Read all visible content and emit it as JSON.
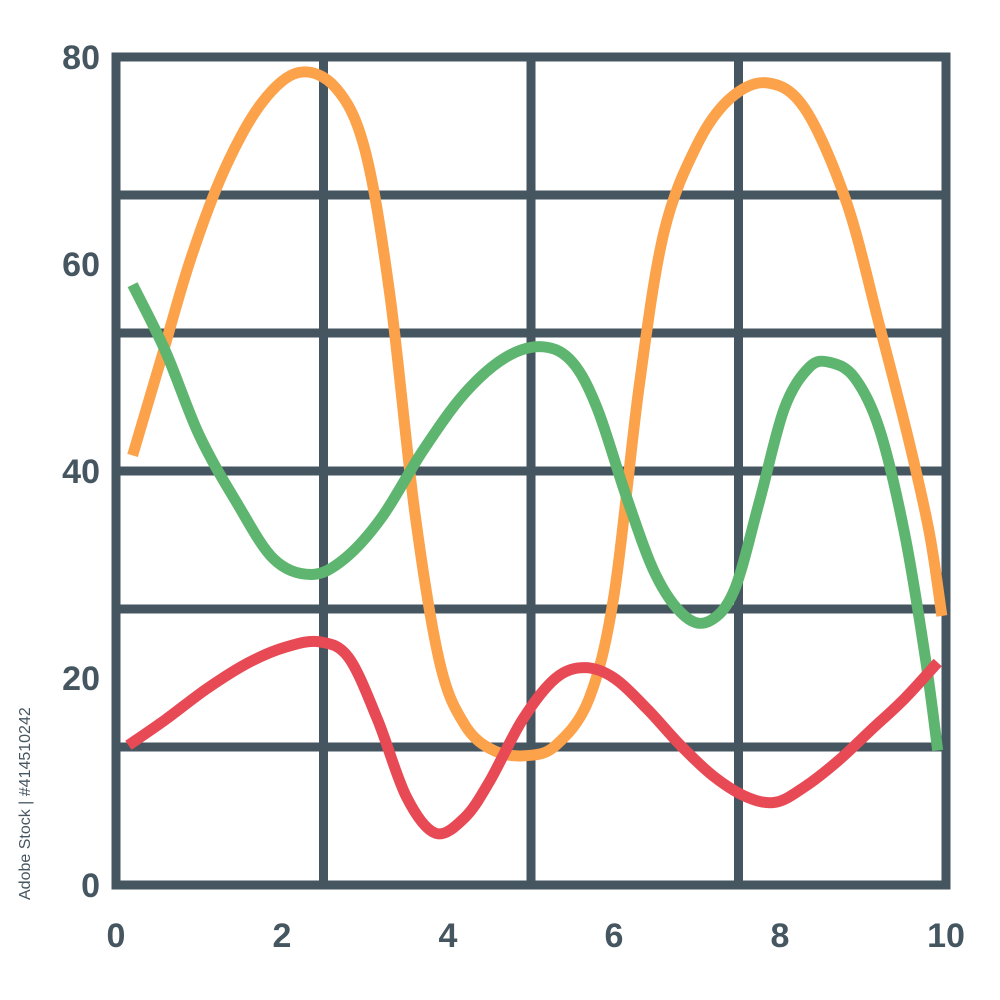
{
  "chart_data": {
    "type": "line",
    "title": "",
    "xlabel": "",
    "ylabel": "",
    "xlim": [
      0,
      10
    ],
    "ylim": [
      0,
      80
    ],
    "x_ticks": [
      "0",
      "2",
      "4",
      "6",
      "8",
      "10"
    ],
    "y_ticks": [
      "0",
      "20",
      "40",
      "60",
      "80"
    ],
    "grid": true,
    "colors": {
      "grid": "#465661",
      "orange": "#FBA24A",
      "green": "#5DB56F",
      "red": "#E84A55"
    },
    "series": [
      {
        "color": "#FBA24A",
        "x": [
          0.2,
          0.55,
          0.9,
          1.3,
          1.75,
          2.2,
          2.65,
          3.0,
          3.3,
          3.6,
          3.9,
          4.2,
          4.55,
          4.95,
          5.3,
          5.7,
          6.0,
          6.3,
          6.6,
          7.0,
          7.4,
          7.85,
          8.3,
          8.8,
          9.2,
          9.55,
          9.8,
          9.95
        ],
        "y": [
          41.5,
          51,
          60.5,
          69,
          75.5,
          78.5,
          77,
          71,
          57,
          36,
          21.5,
          15.5,
          13,
          12.5,
          13.5,
          18,
          28,
          48,
          63,
          71.5,
          76,
          77.5,
          75,
          66,
          54,
          43,
          34,
          26
        ]
      },
      {
        "color": "#5DB56F",
        "x": [
          0.2,
          0.6,
          1.0,
          1.45,
          1.9,
          2.35,
          2.75,
          3.2,
          3.7,
          4.2,
          4.7,
          5.15,
          5.5,
          5.8,
          6.15,
          6.5,
          6.85,
          7.15,
          7.45,
          7.75,
          8.05,
          8.35,
          8.6,
          8.9,
          9.2,
          9.5,
          9.75,
          9.9
        ],
        "y": [
          58,
          51.5,
          43.5,
          37,
          31.5,
          30,
          31.5,
          35.5,
          42,
          47.5,
          51,
          52,
          50.5,
          46,
          37.5,
          30,
          26,
          25.5,
          28.5,
          37,
          46,
          50,
          50.5,
          49,
          44,
          34,
          22,
          13
        ]
      },
      {
        "color": "#E84A55",
        "x": [
          0.15,
          0.6,
          1.1,
          1.6,
          2.05,
          2.45,
          2.8,
          3.15,
          3.5,
          3.85,
          4.2,
          4.5,
          4.9,
          5.3,
          5.65,
          6.0,
          6.4,
          6.8,
          7.2,
          7.6,
          7.95,
          8.3,
          8.7,
          9.1,
          9.5,
          9.9
        ],
        "y": [
          13.5,
          16,
          19,
          21.5,
          23,
          23.5,
          22,
          16,
          8.5,
          5,
          6.5,
          10,
          16,
          20,
          21,
          20,
          17,
          13.5,
          10.5,
          8.5,
          8,
          9.5,
          12,
          15,
          18,
          21.5
        ]
      }
    ]
  },
  "watermark": {
    "side_text": "Adobe Stock | #414510242"
  }
}
